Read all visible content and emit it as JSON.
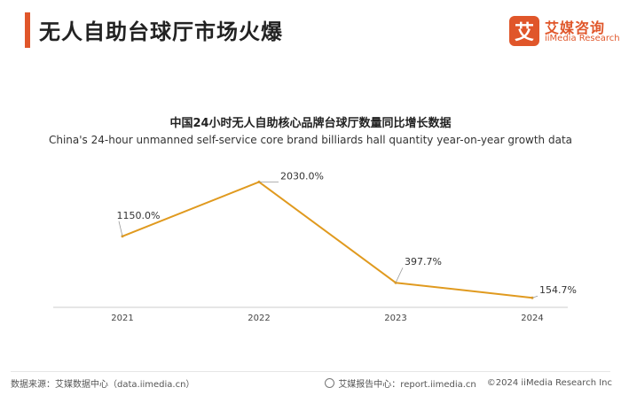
{
  "header": {
    "title": "无人自助台球厅市场火爆"
  },
  "logo": {
    "mark": "艾",
    "name_cn": "艾媒咨询",
    "name_en": "iiMedia Research"
  },
  "colors": {
    "accent": "#e0562a",
    "line": "#e09a1f",
    "axis": "#cccccc",
    "leader": "#999999"
  },
  "chart_data": {
    "type": "line",
    "title": "中国24小时无人自助核心品牌台球厅数量同比增长数据",
    "subtitle": "China's 24-hour unmanned self-service core brand billiards hall quantity year-on-year growth data",
    "categories": [
      "2021",
      "2022",
      "2023",
      "2024"
    ],
    "series": [
      {
        "name": "同比增长",
        "values": [
          1150.0,
          2030.0,
          397.7,
          154.7
        ],
        "labels": [
          "1150.0%",
          "2030.0%",
          "397.7%",
          "154.7%"
        ]
      }
    ],
    "ylim": [
      0,
      2250
    ],
    "grid": false,
    "xlabel": "",
    "ylabel": ""
  },
  "footer": {
    "source": "数据来源：艾媒数据中心（data.iimedia.cn）",
    "report_center": "艾媒报告中心：report.iimedia.cn",
    "copyright": "©2024  iiMedia Research  Inc"
  }
}
